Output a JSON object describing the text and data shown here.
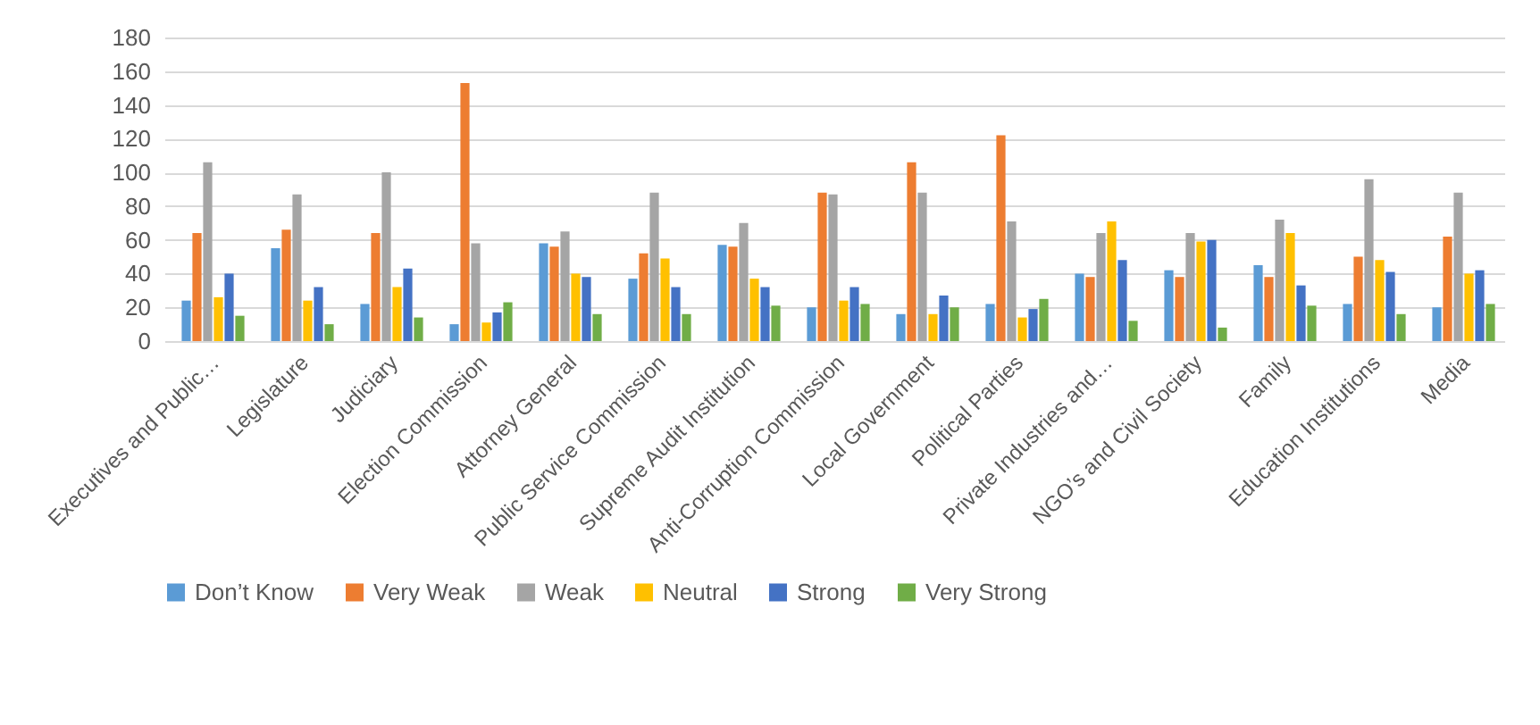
{
  "chart_data": {
    "type": "bar",
    "categories": [
      "Executives and Public…",
      "Legislature",
      "Judiciary",
      "Election Commission",
      "Attorney General",
      "Public Service Commission",
      "Supreme Audit Institution",
      "Anti-Corruption Commission",
      "Local Government",
      "Political Parties",
      "Private Industries and…",
      "NGO’s and Civil Society",
      "Family",
      "Education Institutions",
      "Media"
    ],
    "series": [
      {
        "name": "Don’t Know",
        "color": "#5b9bd5",
        "values": [
          24,
          55,
          22,
          10,
          58,
          37,
          57,
          20,
          16,
          22,
          40,
          42,
          45,
          22,
          20
        ]
      },
      {
        "name": "Very Weak",
        "color": "#ed7d31",
        "values": [
          64,
          66,
          64,
          153,
          56,
          52,
          56,
          88,
          106,
          122,
          38,
          38,
          38,
          50,
          62
        ]
      },
      {
        "name": "Weak",
        "color": "#a5a5a5",
        "values": [
          106,
          87,
          100,
          58,
          65,
          88,
          70,
          87,
          88,
          71,
          64,
          64,
          72,
          96,
          88
        ]
      },
      {
        "name": "Neutral",
        "color": "#ffc000",
        "values": [
          26,
          24,
          32,
          11,
          40,
          49,
          37,
          24,
          16,
          14,
          71,
          59,
          64,
          48,
          40
        ]
      },
      {
        "name": "Strong",
        "color": "#4472c4",
        "values": [
          40,
          32,
          43,
          17,
          38,
          32,
          32,
          32,
          27,
          19,
          48,
          60,
          33,
          41,
          42
        ]
      },
      {
        "name": "Very Strong",
        "color": "#70ad47",
        "values": [
          15,
          10,
          14,
          23,
          16,
          16,
          21,
          22,
          20,
          25,
          12,
          8,
          21,
          16,
          22
        ]
      }
    ],
    "ylim": [
      0,
      180
    ],
    "yticks": [
      0,
      20,
      40,
      60,
      80,
      100,
      120,
      140,
      160,
      180
    ],
    "grid": "y",
    "legend": "bottom"
  }
}
